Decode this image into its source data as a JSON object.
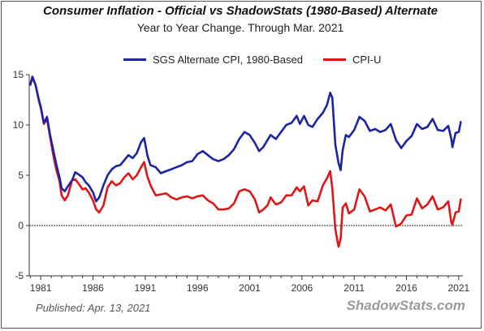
{
  "chart_data": {
    "type": "line",
    "title": "Consumer Inflation - Official vs ShadowStats (1980-Based) Alternate",
    "subtitle": "Year to Year Change. Through Mar. 2021",
    "xlabel": "",
    "ylabel": "",
    "xlim": [
      1979.9,
      2021.4
    ],
    "ylim": [
      -5,
      15
    ],
    "y_ticks": [
      -5,
      0,
      5,
      10,
      15
    ],
    "x_ticks": [
      1981,
      1986,
      1991,
      1996,
      2001,
      2006,
      2011,
      2016,
      2021
    ],
    "grid": false,
    "zero_line": true,
    "legend_position": "top",
    "series": [
      {
        "name": "SGS Alternate CPI, 1980-Based",
        "color": "#1c23a5",
        "points": [
          [
            1980.0,
            14.0
          ],
          [
            1980.2,
            14.8
          ],
          [
            1980.5,
            14.0
          ],
          [
            1980.8,
            12.6
          ],
          [
            1981.0,
            11.8
          ],
          [
            1981.3,
            10.2
          ],
          [
            1981.6,
            10.8
          ],
          [
            1981.9,
            9.0
          ],
          [
            1982.2,
            7.5
          ],
          [
            1982.5,
            6.0
          ],
          [
            1982.8,
            4.8
          ],
          [
            1983.0,
            3.7
          ],
          [
            1983.3,
            3.4
          ],
          [
            1983.6,
            3.9
          ],
          [
            1984.0,
            4.5
          ],
          [
            1984.3,
            5.3
          ],
          [
            1984.6,
            5.1
          ],
          [
            1985.0,
            4.8
          ],
          [
            1985.3,
            4.3
          ],
          [
            1985.6,
            4.0
          ],
          [
            1986.0,
            3.3
          ],
          [
            1986.3,
            2.4
          ],
          [
            1986.6,
            2.8
          ],
          [
            1987.0,
            4.0
          ],
          [
            1987.4,
            5.0
          ],
          [
            1987.8,
            5.6
          ],
          [
            1988.2,
            5.9
          ],
          [
            1988.6,
            6.0
          ],
          [
            1989.0,
            6.5
          ],
          [
            1989.4,
            7.0
          ],
          [
            1989.8,
            6.7
          ],
          [
            1990.2,
            7.2
          ],
          [
            1990.6,
            8.3
          ],
          [
            1990.9,
            8.7
          ],
          [
            1991.2,
            7.0
          ],
          [
            1991.5,
            6.0
          ],
          [
            1992.0,
            5.8
          ],
          [
            1992.5,
            5.2
          ],
          [
            1993.0,
            5.4
          ],
          [
            1993.5,
            5.6
          ],
          [
            1994.0,
            5.8
          ],
          [
            1994.5,
            6.0
          ],
          [
            1995.0,
            6.3
          ],
          [
            1995.5,
            6.4
          ],
          [
            1996.0,
            7.1
          ],
          [
            1996.5,
            7.4
          ],
          [
            1997.0,
            7.0
          ],
          [
            1997.5,
            6.6
          ],
          [
            1998.0,
            6.4
          ],
          [
            1998.5,
            6.6
          ],
          [
            1999.0,
            7.0
          ],
          [
            1999.5,
            7.6
          ],
          [
            2000.0,
            8.6
          ],
          [
            2000.5,
            9.3
          ],
          [
            2001.0,
            9.0
          ],
          [
            2001.5,
            8.2
          ],
          [
            2001.9,
            7.4
          ],
          [
            2002.3,
            7.8
          ],
          [
            2002.7,
            8.5
          ],
          [
            2003.0,
            9.0
          ],
          [
            2003.5,
            8.6
          ],
          [
            2004.0,
            9.3
          ],
          [
            2004.5,
            10.0
          ],
          [
            2005.0,
            10.2
          ],
          [
            2005.5,
            10.9
          ],
          [
            2005.8,
            10.1
          ],
          [
            2006.2,
            10.9
          ],
          [
            2006.6,
            10.0
          ],
          [
            2007.0,
            9.8
          ],
          [
            2007.5,
            10.6
          ],
          [
            2008.0,
            11.2
          ],
          [
            2008.4,
            12.0
          ],
          [
            2008.7,
            13.2
          ],
          [
            2008.9,
            12.7
          ],
          [
            2009.2,
            8.0
          ],
          [
            2009.5,
            6.2
          ],
          [
            2009.7,
            5.5
          ],
          [
            2009.9,
            7.5
          ],
          [
            2010.2,
            9.0
          ],
          [
            2010.5,
            8.8
          ],
          [
            2011.0,
            9.5
          ],
          [
            2011.5,
            10.8
          ],
          [
            2012.0,
            10.4
          ],
          [
            2012.5,
            9.4
          ],
          [
            2013.0,
            9.6
          ],
          [
            2013.5,
            9.3
          ],
          [
            2014.0,
            9.5
          ],
          [
            2014.5,
            10.1
          ],
          [
            2015.0,
            8.5
          ],
          [
            2015.5,
            7.7
          ],
          [
            2016.0,
            8.4
          ],
          [
            2016.5,
            8.9
          ],
          [
            2017.0,
            10.1
          ],
          [
            2017.5,
            9.6
          ],
          [
            2018.0,
            9.8
          ],
          [
            2018.5,
            10.6
          ],
          [
            2019.0,
            9.5
          ],
          [
            2019.5,
            9.4
          ],
          [
            2020.0,
            9.9
          ],
          [
            2020.3,
            8.6
          ],
          [
            2020.4,
            7.8
          ],
          [
            2020.7,
            9.2
          ],
          [
            2021.0,
            9.3
          ],
          [
            2021.2,
            10.3
          ]
        ]
      },
      {
        "name": "CPI-U",
        "color": "#e01616",
        "points": [
          [
            1980.0,
            14.0
          ],
          [
            1980.2,
            14.7
          ],
          [
            1980.5,
            14.0
          ],
          [
            1980.8,
            12.5
          ],
          [
            1981.0,
            11.7
          ],
          [
            1981.3,
            10.1
          ],
          [
            1981.6,
            10.6
          ],
          [
            1981.9,
            8.8
          ],
          [
            1982.2,
            7.0
          ],
          [
            1982.5,
            5.5
          ],
          [
            1982.8,
            4.4
          ],
          [
            1983.0,
            3.0
          ],
          [
            1983.3,
            2.5
          ],
          [
            1983.6,
            3.0
          ],
          [
            1984.0,
            4.5
          ],
          [
            1984.3,
            4.6
          ],
          [
            1984.6,
            4.2
          ],
          [
            1985.0,
            3.6
          ],
          [
            1985.3,
            3.7
          ],
          [
            1985.6,
            3.3
          ],
          [
            1986.0,
            2.5
          ],
          [
            1986.3,
            1.6
          ],
          [
            1986.6,
            1.3
          ],
          [
            1987.0,
            2.0
          ],
          [
            1987.4,
            3.8
          ],
          [
            1987.8,
            4.4
          ],
          [
            1988.2,
            4.0
          ],
          [
            1988.6,
            4.2
          ],
          [
            1989.0,
            4.8
          ],
          [
            1989.4,
            5.2
          ],
          [
            1989.8,
            4.6
          ],
          [
            1990.2,
            5.0
          ],
          [
            1990.6,
            5.8
          ],
          [
            1990.9,
            6.3
          ],
          [
            1991.2,
            4.9
          ],
          [
            1991.5,
            4.0
          ],
          [
            1992.0,
            3.0
          ],
          [
            1992.5,
            3.1
          ],
          [
            1993.0,
            3.2
          ],
          [
            1993.5,
            2.8
          ],
          [
            1994.0,
            2.6
          ],
          [
            1994.5,
            2.8
          ],
          [
            1995.0,
            2.9
          ],
          [
            1995.5,
            2.7
          ],
          [
            1996.0,
            2.9
          ],
          [
            1996.5,
            3.0
          ],
          [
            1997.0,
            2.5
          ],
          [
            1997.5,
            2.2
          ],
          [
            1998.0,
            1.6
          ],
          [
            1998.5,
            1.6
          ],
          [
            1999.0,
            1.7
          ],
          [
            1999.5,
            2.2
          ],
          [
            2000.0,
            3.4
          ],
          [
            2000.5,
            3.6
          ],
          [
            2001.0,
            3.4
          ],
          [
            2001.5,
            2.6
          ],
          [
            2001.9,
            1.3
          ],
          [
            2002.3,
            1.6
          ],
          [
            2002.7,
            2.0
          ],
          [
            2003.0,
            2.8
          ],
          [
            2003.5,
            2.1
          ],
          [
            2004.0,
            2.3
          ],
          [
            2004.5,
            3.0
          ],
          [
            2005.0,
            3.0
          ],
          [
            2005.5,
            3.8
          ],
          [
            2005.8,
            3.4
          ],
          [
            2006.2,
            3.9
          ],
          [
            2006.6,
            2.0
          ],
          [
            2007.0,
            2.5
          ],
          [
            2007.5,
            2.4
          ],
          [
            2008.0,
            4.0
          ],
          [
            2008.4,
            4.7
          ],
          [
            2008.7,
            5.4
          ],
          [
            2008.9,
            3.7
          ],
          [
            2009.2,
            -0.4
          ],
          [
            2009.5,
            -2.1
          ],
          [
            2009.7,
            -1.3
          ],
          [
            2009.9,
            1.8
          ],
          [
            2010.2,
            2.2
          ],
          [
            2010.5,
            1.2
          ],
          [
            2011.0,
            1.6
          ],
          [
            2011.5,
            3.6
          ],
          [
            2012.0,
            2.9
          ],
          [
            2012.5,
            1.4
          ],
          [
            2013.0,
            1.6
          ],
          [
            2013.5,
            1.8
          ],
          [
            2014.0,
            1.5
          ],
          [
            2014.5,
            2.1
          ],
          [
            2015.0,
            -0.1
          ],
          [
            2015.5,
            0.2
          ],
          [
            2016.0,
            1.0
          ],
          [
            2016.5,
            1.1
          ],
          [
            2017.0,
            2.7
          ],
          [
            2017.5,
            1.7
          ],
          [
            2018.0,
            2.1
          ],
          [
            2018.5,
            2.9
          ],
          [
            2019.0,
            1.6
          ],
          [
            2019.5,
            1.8
          ],
          [
            2020.0,
            2.4
          ],
          [
            2020.3,
            0.3
          ],
          [
            2020.4,
            0.1
          ],
          [
            2020.7,
            1.3
          ],
          [
            2021.0,
            1.4
          ],
          [
            2021.2,
            2.6
          ]
        ]
      }
    ]
  },
  "footer": {
    "published": "Published: Apr. 13, 2021",
    "source": "ShadowStats.com"
  }
}
